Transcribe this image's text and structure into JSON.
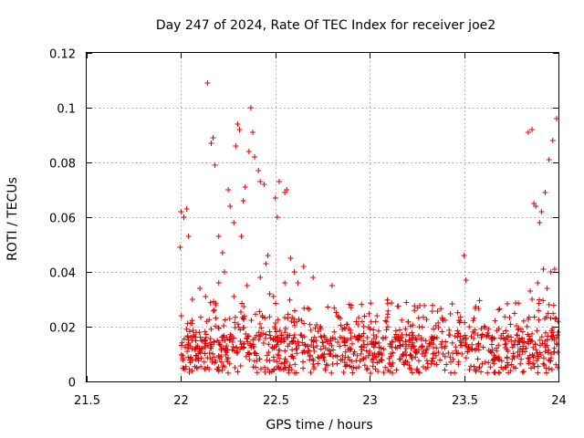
{
  "chart_data": {
    "type": "scatter",
    "title": "Day 247 of 2024, Rate Of TEC Index for receiver joe2",
    "xlabel": "GPS time / hours",
    "ylabel": "ROTI / TECUs",
    "xlim": [
      21.5,
      24
    ],
    "ylim": [
      0,
      0.12
    ],
    "xticks": [
      21.5,
      22,
      22.5,
      23,
      23.5,
      24
    ],
    "xtick_labels": [
      "21.5",
      "22",
      "22.5",
      "23",
      "23.5",
      "24"
    ],
    "yticks": [
      0,
      0.02,
      0.04,
      0.06,
      0.08,
      0.1,
      0.12
    ],
    "ytick_labels": [
      "0",
      "0.02",
      "0.04",
      "0.06",
      "0.08",
      "0.1",
      "0.12"
    ],
    "grid": true,
    "marker": "+",
    "color": "#e00000",
    "series": [
      {
        "name": "ROTI",
        "points": [
          [
            21.995,
            0.049
          ],
          [
            22.0,
            0.062
          ],
          [
            22.015,
            0.06
          ],
          [
            22.03,
            0.063
          ],
          [
            22.04,
            0.053
          ],
          [
            22.14,
            0.109
          ],
          [
            22.16,
            0.087
          ],
          [
            22.17,
            0.089
          ],
          [
            22.18,
            0.079
          ],
          [
            22.2,
            0.053
          ],
          [
            22.22,
            0.047
          ],
          [
            22.23,
            0.04
          ],
          [
            22.25,
            0.07
          ],
          [
            22.26,
            0.064
          ],
          [
            22.28,
            0.058
          ],
          [
            22.29,
            0.086
          ],
          [
            22.3,
            0.094
          ],
          [
            22.31,
            0.092
          ],
          [
            22.32,
            0.053
          ],
          [
            22.33,
            0.066
          ],
          [
            22.34,
            0.071
          ],
          [
            22.35,
            0.035
          ],
          [
            22.36,
            0.084
          ],
          [
            22.37,
            0.1
          ],
          [
            22.38,
            0.091
          ],
          [
            22.39,
            0.082
          ],
          [
            22.41,
            0.077
          ],
          [
            22.42,
            0.073
          ],
          [
            22.44,
            0.072
          ],
          [
            22.45,
            0.043
          ],
          [
            22.46,
            0.046
          ],
          [
            22.47,
            0.032
          ],
          [
            22.49,
            0.031
          ],
          [
            22.5,
            0.067
          ],
          [
            22.51,
            0.06
          ],
          [
            22.52,
            0.073
          ],
          [
            22.55,
            0.069
          ],
          [
            22.56,
            0.07
          ],
          [
            22.58,
            0.045
          ],
          [
            22.6,
            0.04
          ],
          [
            22.62,
            0.036
          ],
          [
            22.65,
            0.042
          ],
          [
            22.7,
            0.038
          ],
          [
            22.06,
            0.03
          ],
          [
            22.1,
            0.034
          ],
          [
            22.13,
            0.031
          ],
          [
            22.2,
            0.036
          ],
          [
            22.28,
            0.031
          ],
          [
            22.42,
            0.038
          ],
          [
            22.55,
            0.036
          ],
          [
            22.8,
            0.035
          ],
          [
            23.5,
            0.046
          ],
          [
            23.51,
            0.037
          ],
          [
            23.84,
            0.091
          ],
          [
            23.86,
            0.092
          ],
          [
            23.87,
            0.065
          ],
          [
            23.88,
            0.064
          ],
          [
            23.9,
            0.058
          ],
          [
            23.93,
            0.069
          ],
          [
            23.95,
            0.081
          ],
          [
            23.97,
            0.088
          ],
          [
            23.99,
            0.096
          ],
          [
            23.92,
            0.041
          ],
          [
            23.96,
            0.04
          ],
          [
            23.89,
            0.036
          ],
          [
            23.86,
            0.03
          ],
          [
            23.94,
            0.034
          ],
          [
            23.98,
            0.041
          ],
          [
            23.91,
            0.062
          ],
          [
            23.85,
            0.033
          ]
        ]
      }
    ]
  }
}
